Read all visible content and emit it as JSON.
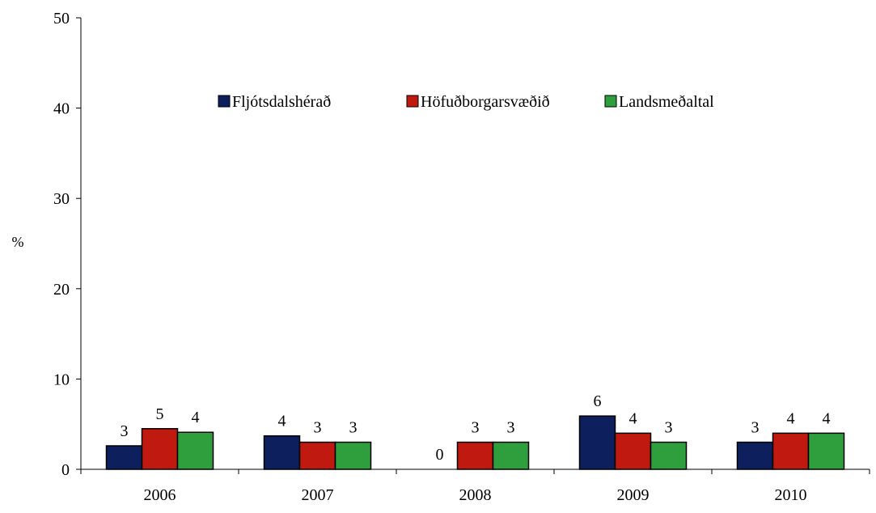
{
  "chart_data": {
    "type": "bar",
    "ylabel": "%",
    "ylim": [
      0,
      50
    ],
    "yticks": [
      0,
      10,
      20,
      30,
      40,
      50
    ],
    "categories": [
      "2006",
      "2007",
      "2008",
      "2009",
      "2010"
    ],
    "series": [
      {
        "name": "Fljótsdalshérað",
        "color": "#0d1f5c",
        "values": [
          2.6,
          3.7,
          0,
          5.9,
          3.0
        ],
        "labels": [
          "3",
          "4",
          "0",
          "6",
          "3"
        ]
      },
      {
        "name": "Höfuðborgarsvæðið",
        "color": "#c0190f",
        "values": [
          4.5,
          3.0,
          3.0,
          4.0,
          4.0
        ],
        "labels": [
          "5",
          "3",
          "3",
          "4",
          "4"
        ]
      },
      {
        "name": "Landsmeðaltal",
        "color": "#2f9e3c",
        "values": [
          4.1,
          3.0,
          3.0,
          3.0,
          4.0
        ],
        "labels": [
          "4",
          "3",
          "3",
          "3",
          "4"
        ]
      }
    ],
    "legend_position": "top-center",
    "grid": false
  }
}
